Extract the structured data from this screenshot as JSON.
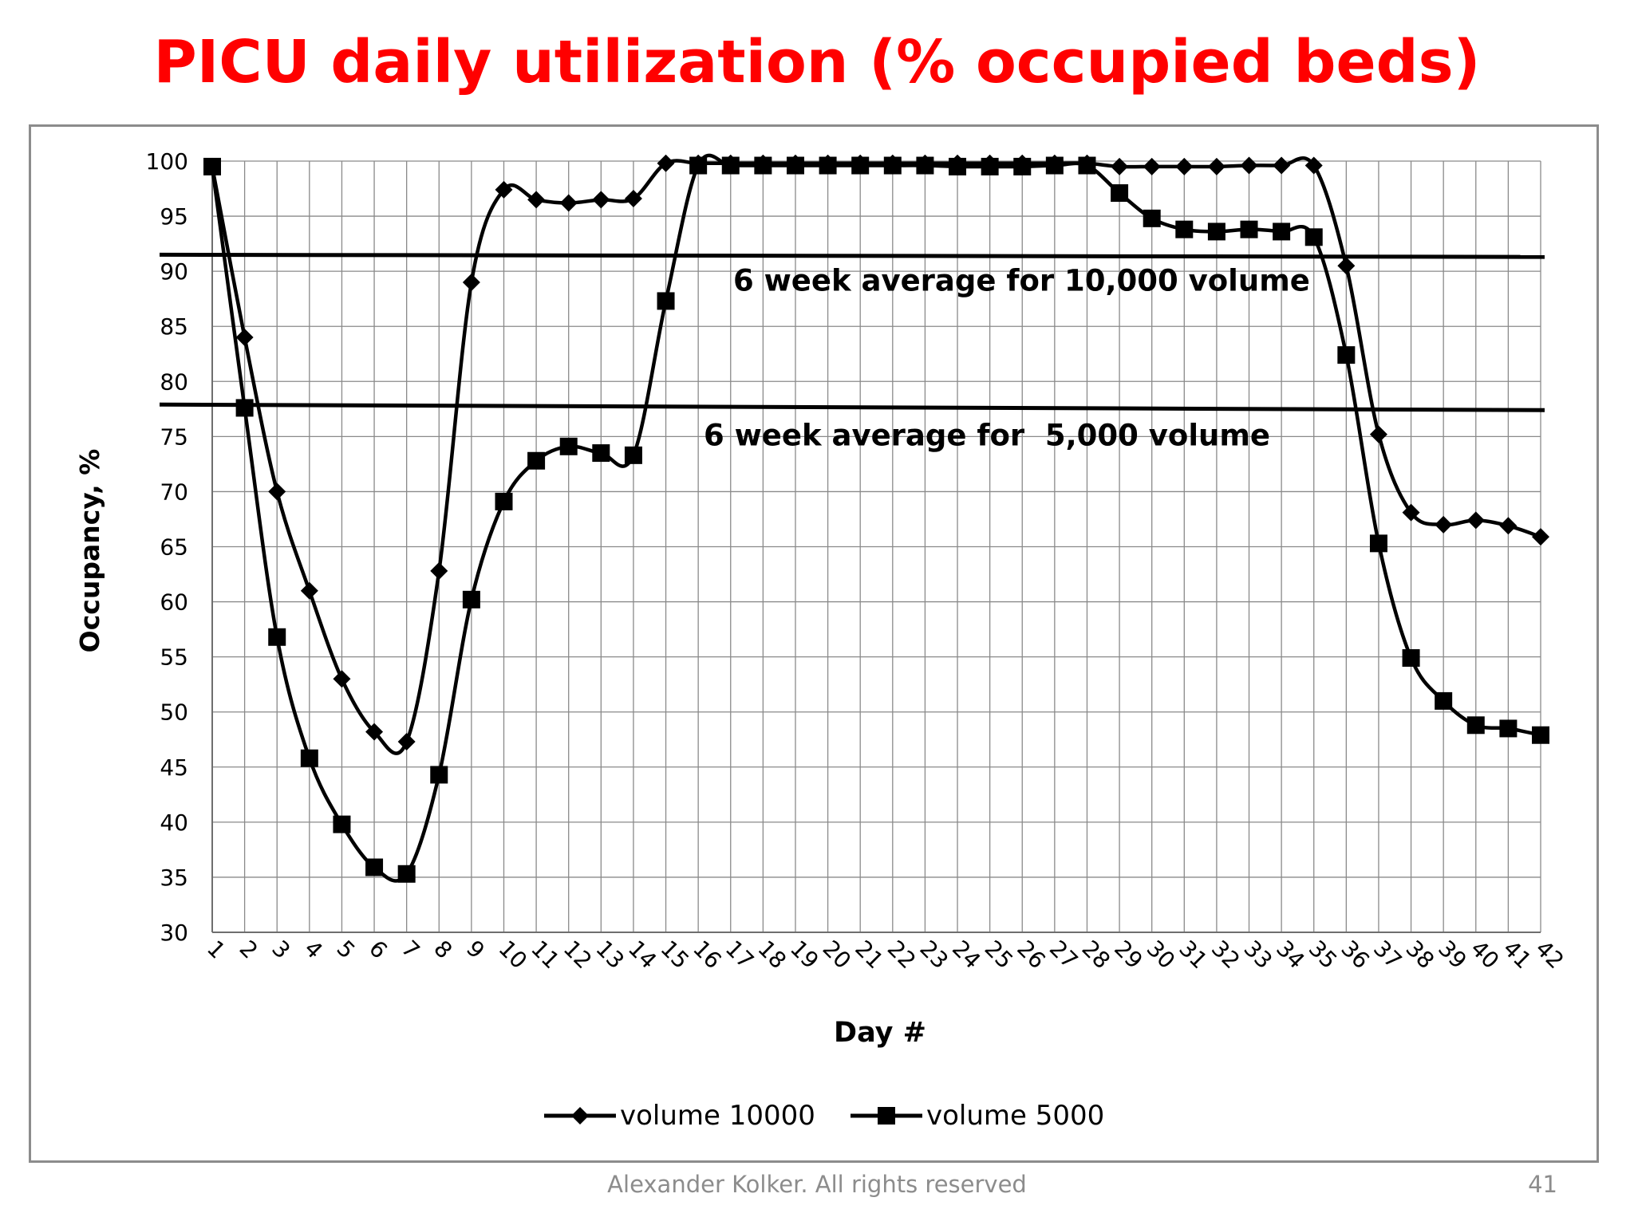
{
  "slide": {
    "title": "PICU daily utilization (% occupied beds)",
    "footer": "Alexander Kolker. All rights reserved",
    "page_number": "41",
    "title_color": "#ff0000",
    "footer_color": "#8c8c8c"
  },
  "chart_data": {
    "type": "line",
    "title": "",
    "xlabel": "Day #",
    "ylabel": "Occupancy, %",
    "ylim": [
      30,
      100
    ],
    "yticks": [
      30,
      35,
      40,
      45,
      50,
      55,
      60,
      65,
      70,
      75,
      80,
      85,
      90,
      95,
      100
    ],
    "x": [
      1,
      2,
      3,
      4,
      5,
      6,
      7,
      8,
      9,
      10,
      11,
      12,
      13,
      14,
      15,
      16,
      17,
      18,
      19,
      20,
      21,
      22,
      23,
      24,
      25,
      26,
      27,
      28,
      29,
      30,
      31,
      32,
      33,
      34,
      35,
      36,
      37,
      38,
      39,
      40,
      41,
      42
    ],
    "grid": true,
    "legend_position": "bottom",
    "series": [
      {
        "name": "volume 10000",
        "marker": "diamond",
        "color": "#000000",
        "values": [
          99.5,
          84,
          70,
          61,
          53,
          48.2,
          47.3,
          62.8,
          89,
          97.4,
          96.5,
          96.2,
          96.5,
          96.6,
          99.8,
          99.8,
          99.8,
          99.8,
          99.8,
          99.8,
          99.8,
          99.8,
          99.8,
          99.8,
          99.8,
          99.8,
          99.8,
          99.8,
          99.5,
          99.5,
          99.5,
          99.5,
          99.6,
          99.6,
          99.6,
          90.5,
          75.2,
          68.1,
          67,
          67.4,
          66.9,
          65.9
        ]
      },
      {
        "name": "volume 5000",
        "marker": "square",
        "color": "#000000",
        "values": [
          99.5,
          77.6,
          56.8,
          45.8,
          39.8,
          35.9,
          35.3,
          44.3,
          60.2,
          69.1,
          72.8,
          74.1,
          73.5,
          73.3,
          87.3,
          99.6,
          99.6,
          99.6,
          99.6,
          99.6,
          99.6,
          99.6,
          99.6,
          99.5,
          99.5,
          99.5,
          99.6,
          99.6,
          97.1,
          94.8,
          93.8,
          93.6,
          93.8,
          93.6,
          93.1,
          82.4,
          65.3,
          54.9,
          51,
          48.8,
          48.5,
          47.9
        ]
      }
    ],
    "reference_lines": [
      {
        "label": "6 week average for 10,000 volume",
        "y_start": 91.5,
        "y_end": 91.3
      },
      {
        "label": "6 week average for  5,000 volume",
        "y_start": 77.9,
        "y_end": 77.4
      }
    ]
  }
}
